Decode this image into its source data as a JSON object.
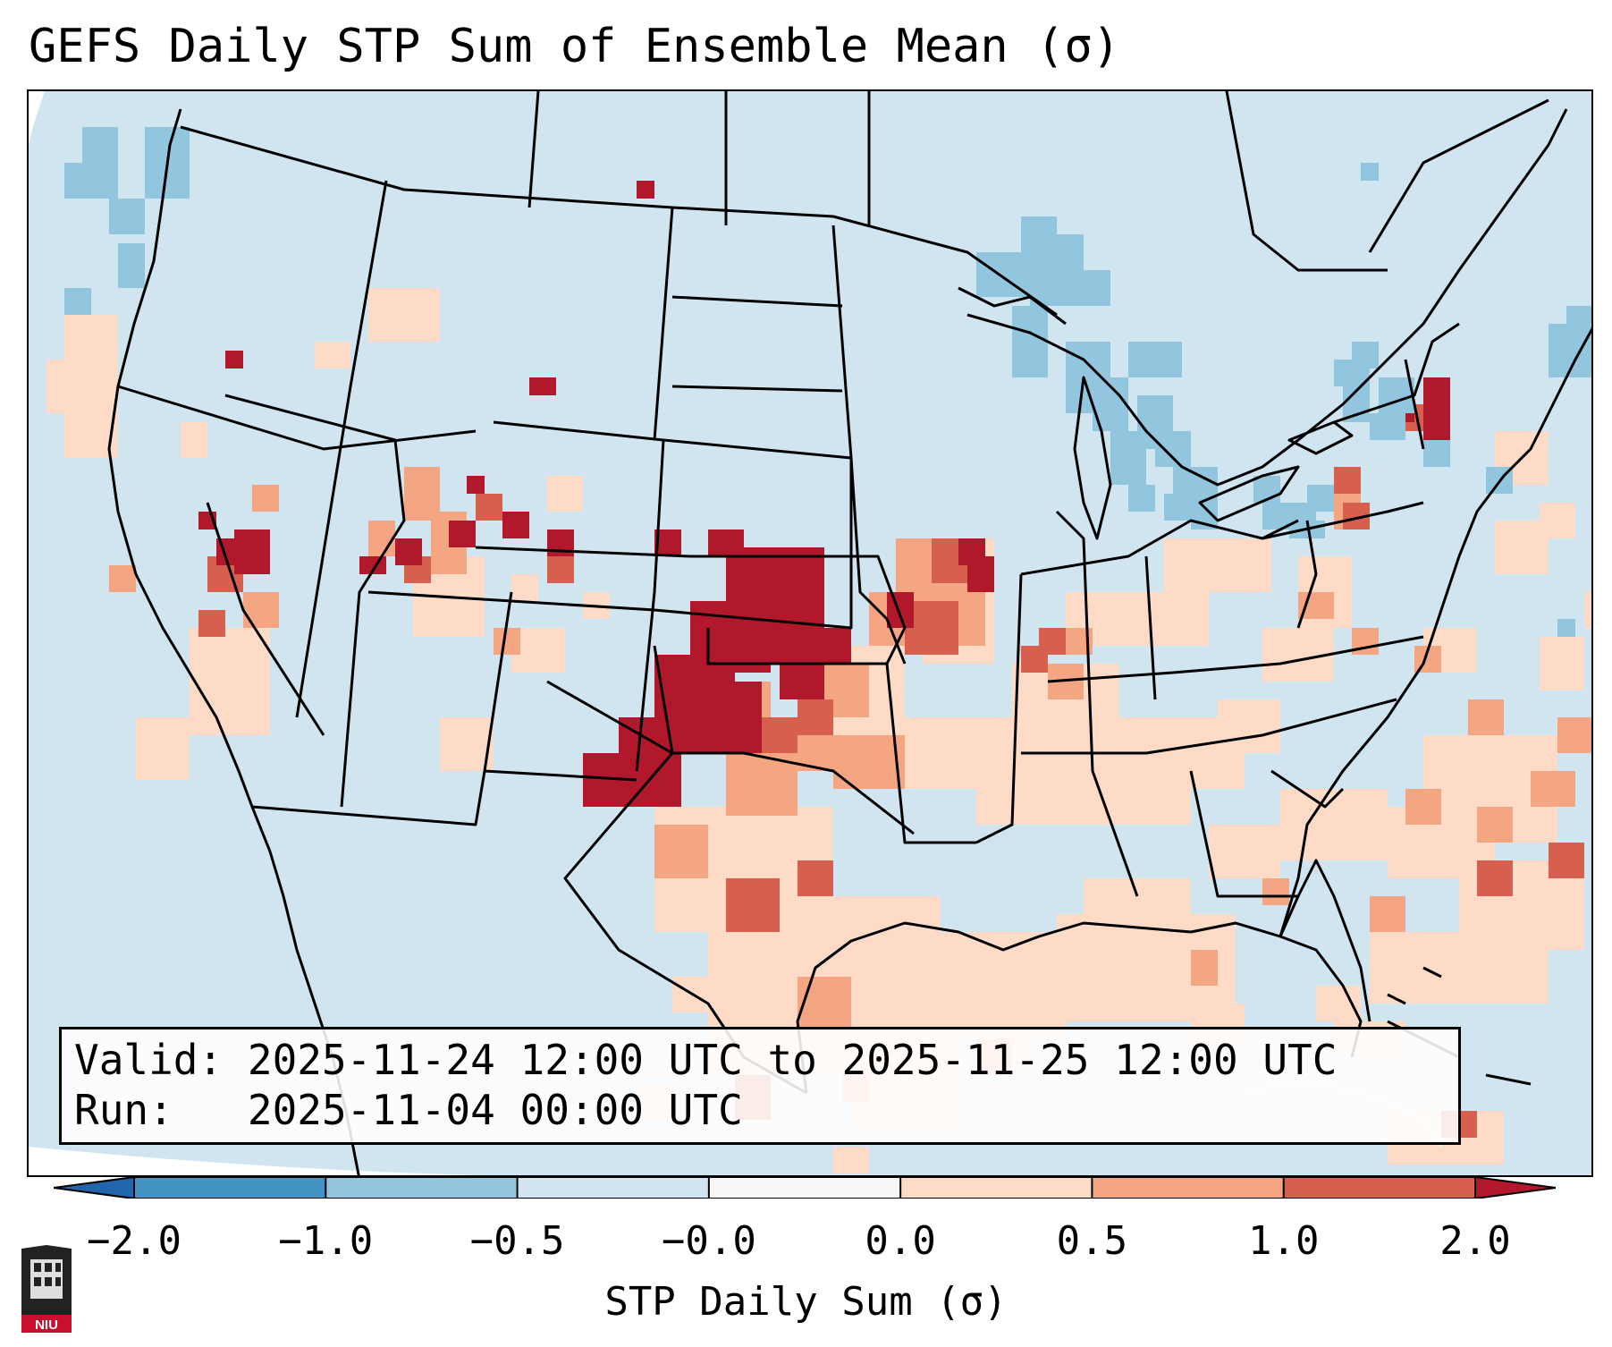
{
  "title": "GEFS Daily STP Sum of Ensemble Mean (σ)",
  "info": {
    "valid_label": "Valid:",
    "valid_value": "2025-11-24 12:00 UTC to 2025-11-25 12:00 UTC",
    "run_label": "Run:",
    "run_value": "2025-11-04 00:00 UTC"
  },
  "colorbar": {
    "label": "STP Daily Sum (σ)",
    "ticks": [
      "−2.0",
      "−1.0",
      "−0.5",
      "−0.0",
      "0.0",
      "0.5",
      "1.0",
      "2.0"
    ],
    "colors": [
      "#4393c3",
      "#92c5de",
      "#d1e5f0",
      "#f7f7f7",
      "#fddbc7",
      "#f4a582",
      "#d6604d"
    ],
    "under_color": "#2166ac",
    "over_color": "#b2182b"
  },
  "map": {
    "background_color": "#d1e5f0",
    "peak_color": "#b2182b",
    "high_color": "#d6604d",
    "mid_color": "#f4a582",
    "low_color": "#fddbc7",
    "neg_color": "#92c5de",
    "outline_color": "#000000"
  },
  "logo": {
    "text": "NIU",
    "color": "#c8102e"
  }
}
